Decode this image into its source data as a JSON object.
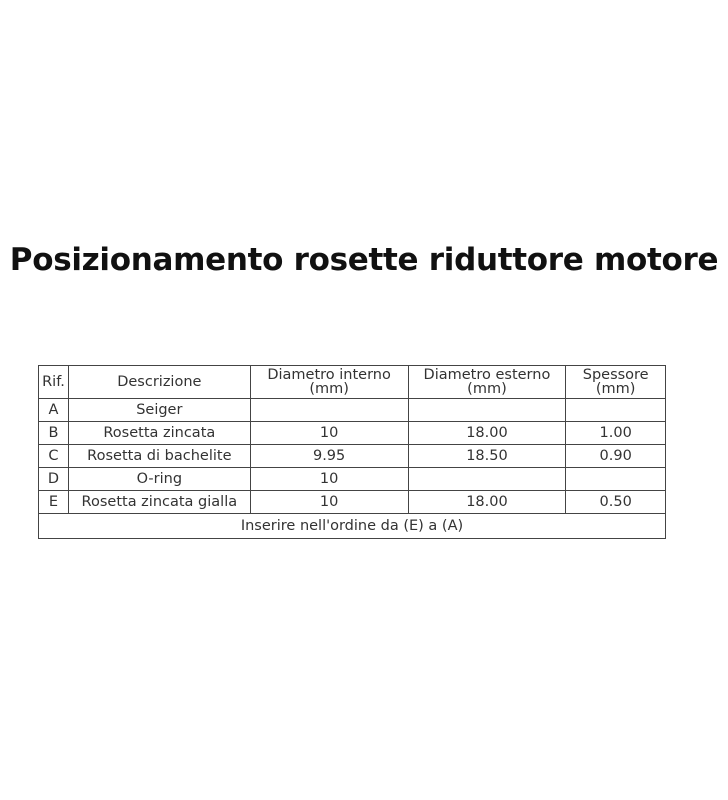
{
  "title": "Posizionamento rosette riduttore motore",
  "table": {
    "headers": [
      {
        "line1": "Rif.",
        "line2": ""
      },
      {
        "line1": "Descrizione",
        "line2": ""
      },
      {
        "line1": "Diametro interno",
        "line2": "(mm)"
      },
      {
        "line1": "Diametro esterno",
        "line2": "(mm)"
      },
      {
        "line1": "Spessore",
        "line2": "(mm)"
      }
    ],
    "rows": [
      [
        "A",
        "Seiger",
        "",
        "",
        ""
      ],
      [
        "B",
        "Rosetta zincata",
        "10",
        "18.00",
        "1.00"
      ],
      [
        "C",
        "Rosetta di bachelite",
        "9.95",
        "18.50",
        "0.90"
      ],
      [
        "D",
        "O-ring",
        "10",
        "",
        ""
      ],
      [
        "E",
        "Rosetta zincata gialla",
        "10",
        "18.00",
        "0.50"
      ]
    ],
    "footer": "Inserire nell'ordine da (E) a (A)"
  }
}
